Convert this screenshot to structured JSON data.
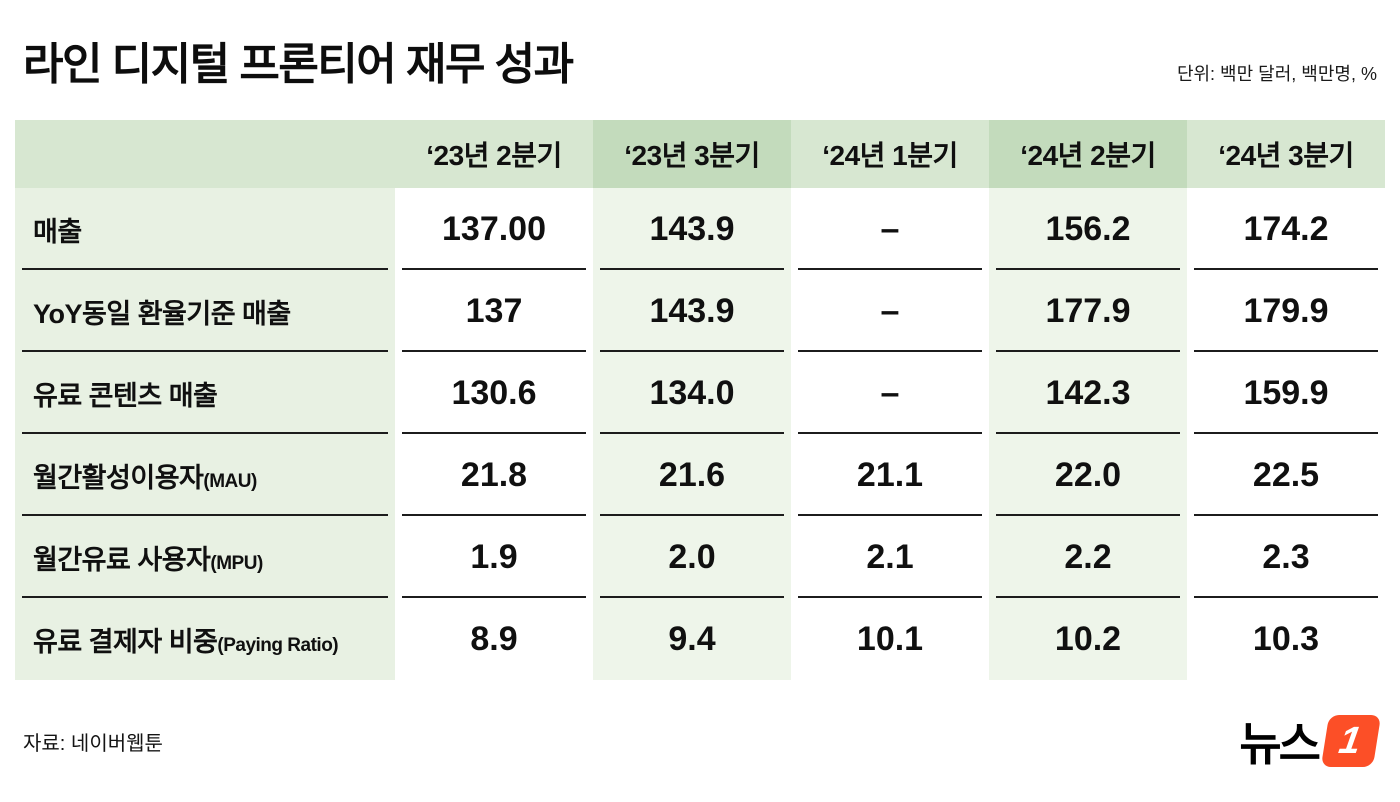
{
  "header": {
    "title": "라인 디지털 프론티어 재무 성과",
    "unit_note": "단위: 백만 달러, 백만명, %"
  },
  "chart_data": {
    "type": "table",
    "title": "라인 디지털 프론티어 재무 성과",
    "unit": "백만 달러, 백만명, %",
    "columns": [
      "‘23년 2분기",
      "‘23년 3분기",
      "‘24년 1분기",
      "‘24년 2분기",
      "‘24년 3분기"
    ],
    "highlighted_columns": [
      "‘23년 3분기",
      "‘24년 2분기"
    ],
    "rows": [
      {
        "label": "매출",
        "suffix": "",
        "values": [
          "137.00",
          "143.9",
          "–",
          "156.2",
          "174.2"
        ]
      },
      {
        "label": "YoY동일 환율기준 매출",
        "suffix": "",
        "values": [
          "137",
          "143.9",
          "–",
          "177.9",
          "179.9"
        ]
      },
      {
        "label": "유료 콘텐츠 매출",
        "suffix": "",
        "values": [
          "130.6",
          "134.0",
          "–",
          "142.3",
          "159.9"
        ]
      },
      {
        "label": "월간활성이용자",
        "suffix": "(MAU)",
        "values": [
          "21.8",
          "21.6",
          "21.1",
          "22.0",
          "22.5"
        ]
      },
      {
        "label": "월간유료 사용자",
        "suffix": "(MPU)",
        "values": [
          "1.9",
          "2.0",
          "2.1",
          "2.2",
          "2.3"
        ]
      },
      {
        "label": "유료 결제자 비중",
        "suffix": "(Paying Ratio)",
        "values": [
          "8.9",
          "9.4",
          "10.1",
          "10.2",
          "10.3"
        ]
      }
    ],
    "source": "자료: 네이버웹툰"
  },
  "footer": {
    "source": "자료: 네이버웹툰",
    "logo": {
      "text": "뉴스",
      "badge": "1"
    }
  },
  "colors": {
    "header_bg": "#d7e7d1",
    "header_highlight_bg": "#c3dbbc",
    "label_column_bg": "#e8f1e3",
    "highlight_column_bg": "#eef5ea",
    "divider_line": "#1c1c1c",
    "logo_accent": "#fc4f27"
  }
}
